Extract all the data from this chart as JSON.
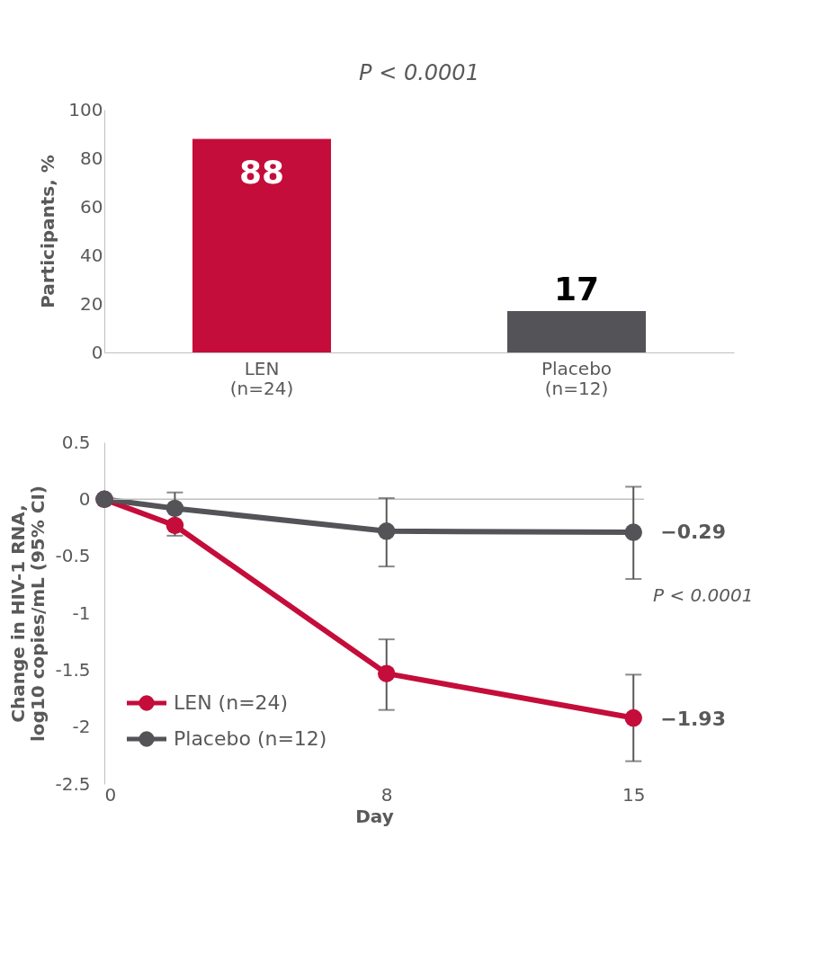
{
  "chart_data": [
    {
      "type": "bar",
      "categories": [
        "LEN (n=24)",
        "Placebo (n=12)"
      ],
      "values": [
        88,
        17
      ],
      "colors": [
        "#c40d3a",
        "#535358"
      ],
      "ylabel": "Participants, %",
      "ylim": [
        0,
        100
      ],
      "yticks": [
        0,
        20,
        40,
        60,
        80,
        100
      ],
      "grid": false,
      "data_labels": true,
      "annotations": [
        "P < 0.0001"
      ]
    },
    {
      "type": "line",
      "xlabel": "Day",
      "ylabel": "Change in HIV-1 RNA, log10 copies/mL (95% CI)",
      "x": [
        0,
        2,
        8,
        15
      ],
      "xlim": [
        0,
        15.3
      ],
      "xticks": [
        0,
        8,
        15
      ],
      "ylim": [
        -2.5,
        0.5
      ],
      "yticks": [
        -2.5,
        -2,
        -1.5,
        -1,
        -0.5,
        0,
        0.5
      ],
      "grid": false,
      "marker": "circle",
      "line_style": "solid",
      "legend": "bottom left",
      "series": [
        {
          "name": "LEN (n=24)",
          "color": "#c40d3a",
          "values": [
            0,
            -0.23,
            -1.53,
            -1.92
          ],
          "errors": [
            null,
            null,
            [
              -1.85,
              -1.23
            ],
            [
              -2.3,
              -1.54
            ]
          ]
        },
        {
          "name": "Placebo (n=12)",
          "color": "#535358",
          "values": [
            0,
            -0.08,
            -0.28,
            -0.29
          ],
          "errors": [
            null,
            [
              -0.32,
              0.06
            ],
            [
              -0.59,
              0.01
            ],
            [
              -0.7,
              0.11
            ]
          ]
        }
      ],
      "ref_lines": [
        {
          "axis": "y",
          "value": 0,
          "color": "#bfbfbf"
        }
      ],
      "annotations": [
        {
          "text": "−0.29",
          "x": 15,
          "y": -0.29
        },
        {
          "text": "−1.93",
          "x": 15,
          "y": -1.93
        },
        "P < 0.0001"
      ]
    }
  ]
}
